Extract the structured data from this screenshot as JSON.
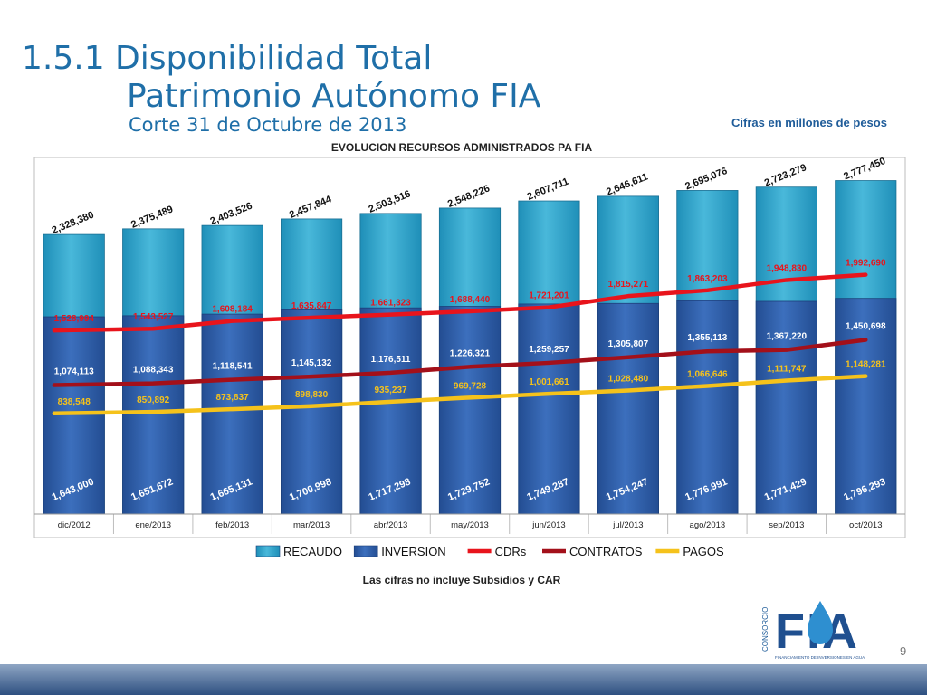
{
  "slide": {
    "title_line1": "1.5.1 Disponibilidad Total",
    "title_line2": "Patrimonio Autónomo FIA",
    "subtitle": "Corte 31 de Octubre de 2013",
    "units_note": "Cifras en millones de pesos",
    "page_number": "9"
  },
  "logo": {
    "brand_text": "FIA",
    "side_text": "CONSORCIO",
    "tagline": "FINANCIAMIENTO DE INVERSIONES EN AGUA"
  },
  "chart_data": {
    "type": "bar",
    "title": "EVOLUCION RECURSOS ADMINISTRADOS PA FIA",
    "footnote": "Las cifras no incluye Subsidios y CAR",
    "categories": [
      "dic/2012",
      "ene/2013",
      "feb/2013",
      "mar/2013",
      "abr/2013",
      "may/2013",
      "jun/2013",
      "jul/2013",
      "ago/2013",
      "sep/2013",
      "oct/2013"
    ],
    "ylim": [
      0,
      3000000
    ],
    "series": [
      {
        "name": "RECAUDO",
        "kind": "bar",
        "color": "#31a3c8",
        "values": [
          2328380,
          2375489,
          2403526,
          2457844,
          2503516,
          2548226,
          2607711,
          2646611,
          2695076,
          2723279,
          2777450
        ],
        "labels": [
          "2,328,380",
          "2,375,489",
          "2,403,526",
          "2,457,844",
          "2,503,516",
          "2,548,226",
          "2,607,711",
          "2,646,611",
          "2,695,076",
          "2,723,279",
          "2,777,450"
        ]
      },
      {
        "name": "INVERSION",
        "kind": "bar",
        "color": "#2e5ea8",
        "values": [
          1643000,
          1651672,
          1665131,
          1700998,
          1717298,
          1729752,
          1749287,
          1754247,
          1776991,
          1771429,
          1796293
        ],
        "labels": [
          "1,643,000",
          "1,651,672",
          "1,665,131",
          "1,700,998",
          "1,717,298",
          "1,729,752",
          "1,749,287",
          "1,754,247",
          "1,776,991",
          "1,771,429",
          "1,796,293"
        ]
      },
      {
        "name": "CDRs",
        "kind": "line",
        "color": "#e8141c",
        "values": [
          1528994,
          1543527,
          1608184,
          1635847,
          1661323,
          1688440,
          1721201,
          1815271,
          1863203,
          1948830,
          1992690
        ],
        "labels": [
          "1,528,994",
          "1,543,527",
          "1,608,184",
          "1,635,847",
          "1,661,323",
          "1,688,440",
          "1,721,201",
          "1,815,271",
          "1,863,203",
          "1,948,830",
          "1,992,690"
        ]
      },
      {
        "name": "CONTRATOS",
        "kind": "line",
        "color": "#a3101a",
        "values": [
          1074113,
          1088343,
          1118541,
          1145132,
          1176511,
          1226321,
          1259257,
          1305807,
          1355113,
          1367220,
          1450698
        ],
        "labels": [
          "1,074,113",
          "1,088,343",
          "1,118,541",
          "1,145,132",
          "1,176,511",
          "1,226,321",
          "1,259,257",
          "1,305,807",
          "1,355,113",
          "1,367,220",
          "1,450,698"
        ]
      },
      {
        "name": "PAGOS",
        "kind": "line",
        "color": "#f5c21b",
        "values": [
          838548,
          850892,
          873837,
          898830,
          935237,
          969728,
          1001661,
          1028480,
          1066646,
          1111747,
          1148281
        ],
        "labels": [
          "838,548",
          "850,892",
          "873,837",
          "898,830",
          "935,237",
          "969,728",
          "1,001,661",
          "1,028,480",
          "1,066,646",
          "1,111,747",
          "1,148,281"
        ]
      }
    ],
    "legend": {
      "placement": "bottom"
    },
    "grid": false
  }
}
